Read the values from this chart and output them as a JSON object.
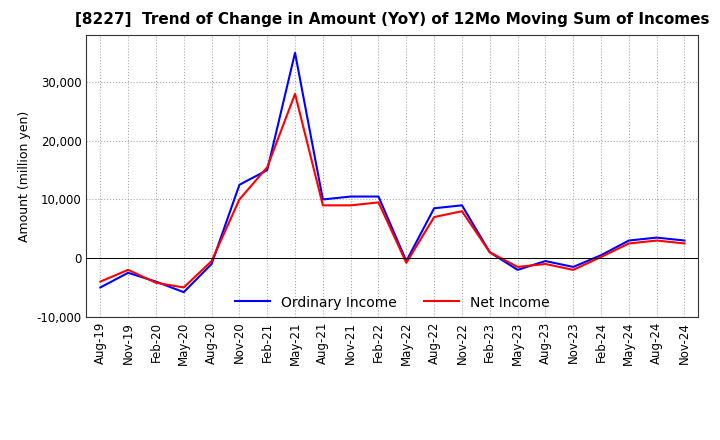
{
  "title": "[8227]  Trend of Change in Amount (YoY) of 12Mo Moving Sum of Incomes",
  "ylabel": "Amount (million yen)",
  "x_labels": [
    "Aug-19",
    "Nov-19",
    "Feb-20",
    "May-20",
    "Aug-20",
    "Nov-20",
    "Feb-21",
    "May-21",
    "Aug-21",
    "Nov-21",
    "Feb-22",
    "May-22",
    "Aug-22",
    "Nov-22",
    "Feb-23",
    "May-23",
    "Aug-23",
    "Nov-23",
    "Feb-24",
    "May-24",
    "Aug-24",
    "Nov-24"
  ],
  "ordinary_income": [
    -5000,
    -2500,
    -4000,
    -5800,
    -1000,
    12500,
    15000,
    35000,
    10000,
    10500,
    10500,
    -500,
    8500,
    9000,
    1000,
    -2000,
    -500,
    -1500,
    500,
    3000,
    3500,
    3000
  ],
  "net_income": [
    -4000,
    -2000,
    -4200,
    -5000,
    -500,
    10000,
    15500,
    28000,
    9000,
    9000,
    9500,
    -800,
    7000,
    8000,
    1000,
    -1500,
    -1000,
    -2000,
    200,
    2500,
    3000,
    2500
  ],
  "ordinary_income_color": "#0000FF",
  "net_income_color": "#FF0000",
  "ylim": [
    -8000,
    38000
  ],
  "yticks": [
    -10000,
    0,
    10000,
    20000,
    30000
  ],
  "grid_color": "#aaaaaa",
  "background_color": "#ffffff",
  "title_fontsize": 11,
  "axis_fontsize": 9,
  "tick_fontsize": 8.5,
  "legend_fontsize": 10,
  "linewidth": 1.5
}
